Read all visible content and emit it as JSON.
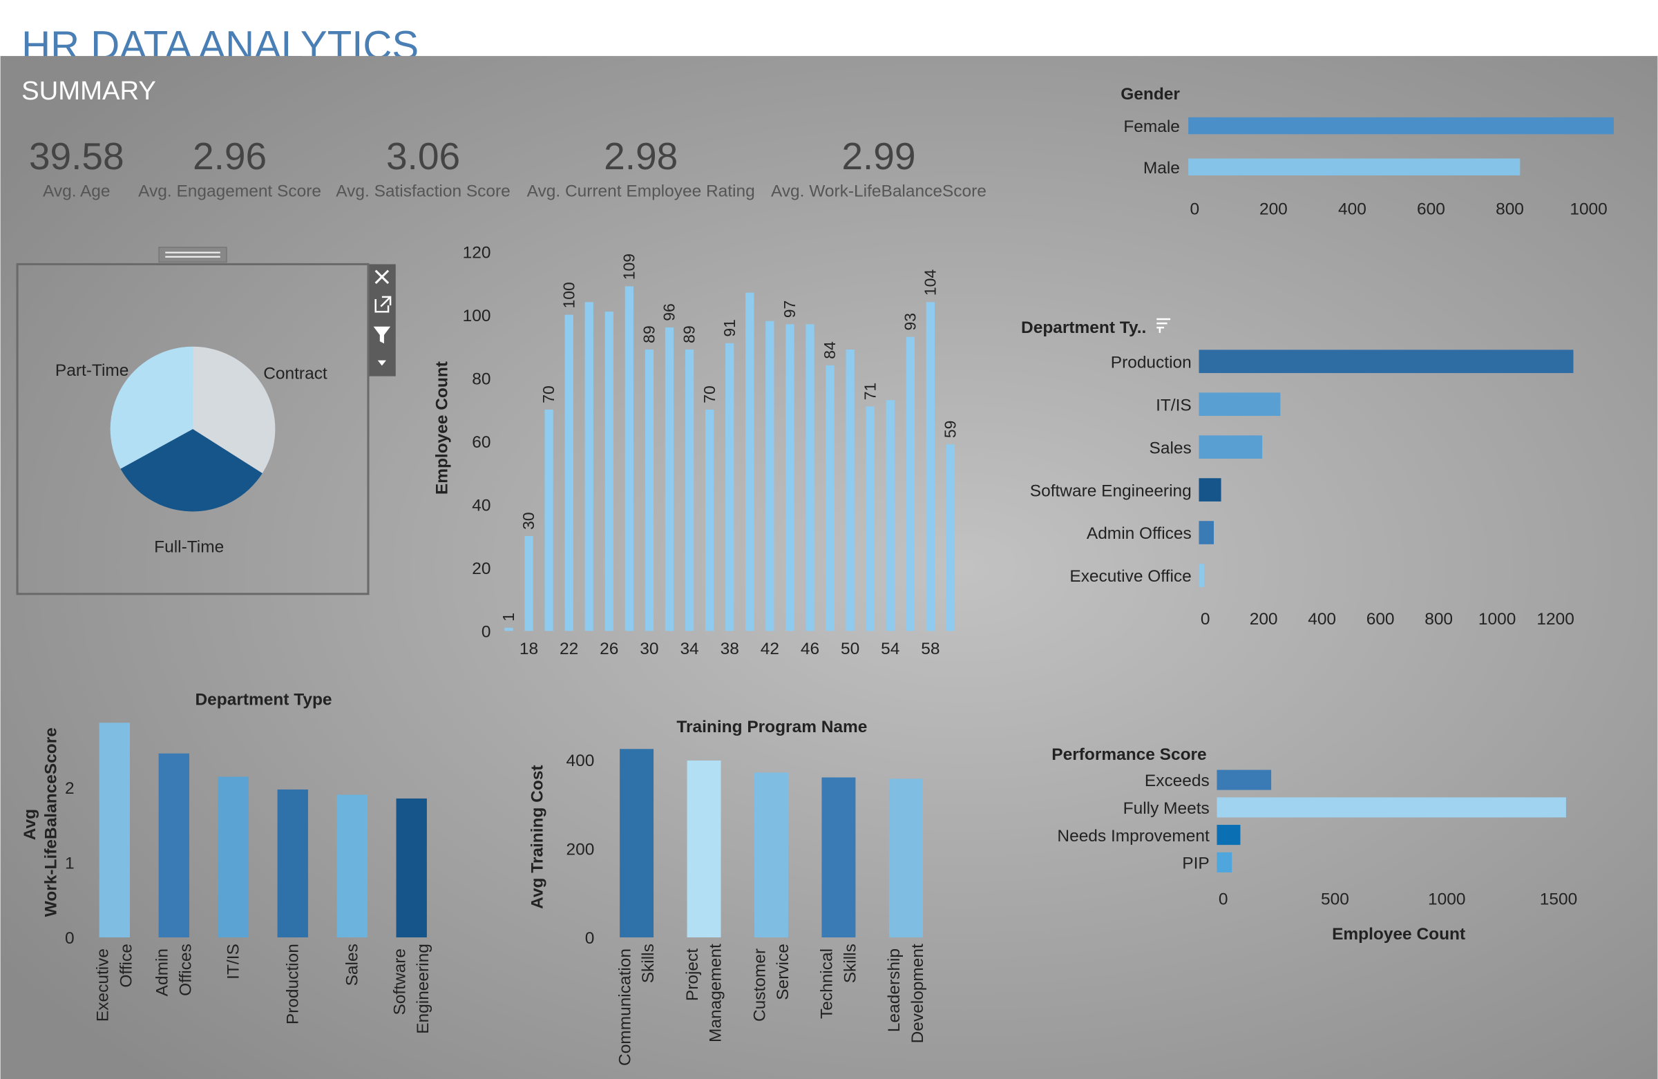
{
  "header": {
    "title": "HR DATA ANALYTICS",
    "subtitle": "SUMMARY"
  },
  "kpis": [
    {
      "value": 39.58,
      "label": "Avg. Age"
    },
    {
      "value": 2.96,
      "label": "Avg. Engagement Score"
    },
    {
      "value": 3.06,
      "label": "Avg. Satisfaction Score"
    },
    {
      "value": 2.98,
      "label": "Avg. Current Employee Rating"
    },
    {
      "value": 2.99,
      "label": "Avg. Work-LifeBalanceScore"
    }
  ],
  "chart_data": [
    {
      "type": "hbar",
      "title": "Gender",
      "categories": [
        "Female",
        "Male"
      ],
      "values": [
        1080,
        842
      ],
      "colors": [
        "#4a8fc8",
        "#86c3e8"
      ],
      "xlim": [
        0,
        1100
      ],
      "xticks": [
        0,
        200,
        400,
        600,
        800,
        1000
      ]
    },
    {
      "type": "pie",
      "categories": [
        "Contract",
        "Full-Time",
        "Part-Time"
      ],
      "values": [
        34,
        33,
        33
      ],
      "colors": [
        "#d5dadf",
        "#15558a",
        "#b3dff5"
      ]
    },
    {
      "type": "bar",
      "ylabel": "Employee Count",
      "x": [
        16,
        18,
        20,
        22,
        24,
        26,
        28,
        30,
        32,
        34,
        36,
        38,
        40,
        42,
        44,
        46,
        48,
        50,
        52,
        54,
        56,
        58,
        60
      ],
      "values": [
        1,
        30,
        70,
        100,
        104,
        101,
        109,
        89,
        96,
        89,
        70,
        91,
        107,
        98,
        97,
        97,
        84,
        89,
        71,
        73,
        93,
        104,
        59
      ],
      "value_labels": [
        1,
        30,
        70,
        100,
        null,
        null,
        109,
        89,
        96,
        89,
        70,
        91,
        null,
        null,
        97,
        null,
        84,
        null,
        71,
        null,
        93,
        104,
        59
      ],
      "color": "#8ecbee",
      "xlim": [
        15,
        61
      ],
      "xticks": [
        18,
        22,
        26,
        30,
        34,
        38,
        42,
        46,
        50,
        54,
        58
      ],
      "ylim": [
        0,
        120
      ],
      "yticks": [
        0,
        20,
        40,
        60,
        80,
        100,
        120
      ]
    },
    {
      "type": "hbar",
      "title": "Department Ty..",
      "categories": [
        "Production",
        "IT/IS",
        "Sales",
        "Software Engineering",
        "Admin Offices",
        "Executive Office"
      ],
      "values": [
        1283,
        279,
        217,
        76,
        51,
        18
      ],
      "colors": [
        "#2e6da4",
        "#5a9fd1",
        "#5a9fd1",
        "#15558a",
        "#3b7bb5",
        "#8ec8ea"
      ],
      "xlim": [
        0,
        1300
      ],
      "xticks": [
        0,
        200,
        400,
        600,
        800,
        1000,
        1200
      ]
    },
    {
      "type": "bar",
      "title": "Department Type",
      "ylabel": "Avg Work-LifeBalanceScore",
      "categories": [
        "Executive Office",
        "Admin Offices",
        "IT/IS",
        "Production",
        "Sales",
        "Software Engineering"
      ],
      "values": [
        2.86,
        2.45,
        2.14,
        1.97,
        1.9,
        1.85
      ],
      "colors": [
        "#7fbde3",
        "#3b7bb5",
        "#5ba3d3",
        "#2f72aa",
        "#6cb3de",
        "#15558a"
      ],
      "ylim": [
        0,
        2.9
      ],
      "yticks": [
        0,
        1,
        2
      ]
    },
    {
      "type": "bar",
      "title": "Training Program Name",
      "ylabel": "Avg Training Cost",
      "categories": [
        "Communication Skills",
        "Project Management",
        "Customer Service",
        "Technical Skills",
        "Leadership Development"
      ],
      "values": [
        424,
        398,
        371,
        360,
        357
      ],
      "colors": [
        "#2f72aa",
        "#b3dff5",
        "#7fbde3",
        "#3b7bb5",
        "#7fbde3"
      ],
      "ylim": [
        0,
        440
      ],
      "yticks": [
        0,
        200,
        400
      ]
    },
    {
      "type": "hbar",
      "title": "Performance Score",
      "xlabel": "Employee Count",
      "categories": [
        "Exceeds",
        "Fully Meets",
        "Needs Improvement",
        "PIP"
      ],
      "values": [
        243,
        1562,
        105,
        67
      ],
      "colors": [
        "#3b7bb5",
        "#9fd3f0",
        "#0a6fb3",
        "#4ea6dc"
      ],
      "xlim": [
        0,
        1650
      ],
      "xticks": [
        0,
        500,
        1000,
        1500
      ]
    }
  ]
}
